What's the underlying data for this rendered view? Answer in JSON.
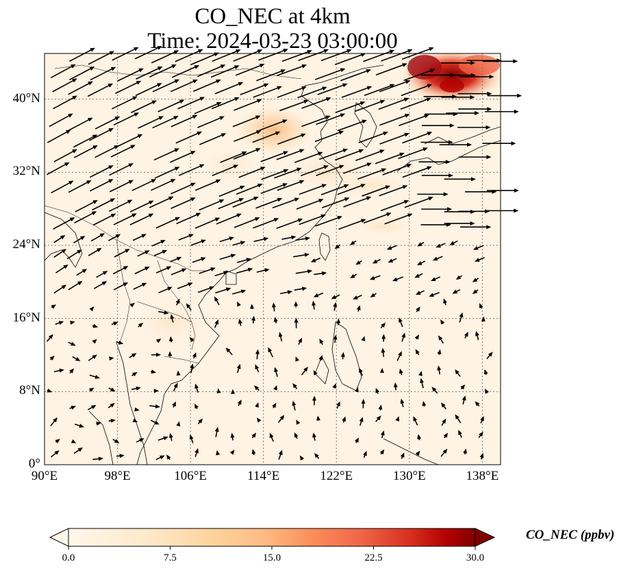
{
  "title": {
    "line1": "CO_NEC at 4km",
    "line2": "Time: 2024-03-23 03:00:00"
  },
  "map": {
    "lon_range": [
      90,
      140
    ],
    "lat_range": [
      0,
      45
    ],
    "lat_ticks": [
      {
        "value": 0,
        "label": "0°"
      },
      {
        "value": 8,
        "label": "8°N"
      },
      {
        "value": 16,
        "label": "16°N"
      },
      {
        "value": 24,
        "label": "24°N"
      },
      {
        "value": 32,
        "label": "32°N"
      },
      {
        "value": 40,
        "label": "40°N"
      }
    ],
    "lon_ticks": [
      {
        "value": 90,
        "label": "90°E"
      },
      {
        "value": 98,
        "label": "98°E"
      },
      {
        "value": 106,
        "label": "106°E"
      },
      {
        "value": 114,
        "label": "114°E"
      },
      {
        "value": 122,
        "label": "122°E"
      },
      {
        "value": 130,
        "label": "130°E"
      },
      {
        "value": 138,
        "label": "138°E"
      }
    ],
    "gridlines": true
  },
  "colorbar": {
    "label": "CO_NEC (ppbv)",
    "ticks": [
      "0.0",
      "7.5",
      "15.0",
      "22.5",
      "30.0"
    ],
    "range": [
      0,
      30
    ],
    "colormap": "OrRd",
    "extend": "both"
  },
  "colors": {
    "low": "#fff7ec",
    "mid": "#fdbb84",
    "high": "#7f0000"
  }
}
